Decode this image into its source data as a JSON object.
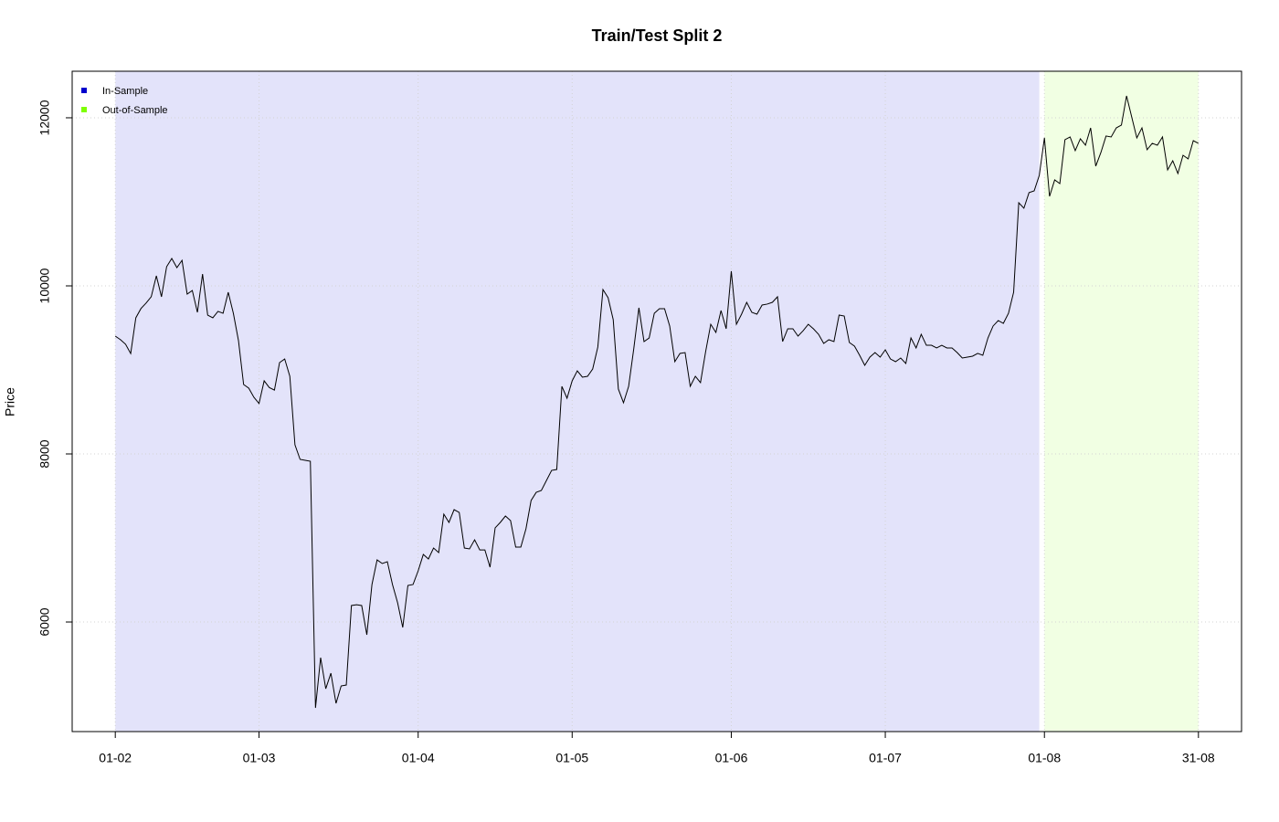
{
  "chart_data": {
    "type": "line",
    "title": "Train/Test Split 2",
    "ylabel": "Price",
    "x": [
      "01-02",
      "02-02",
      "03-02",
      "04-02",
      "05-02",
      "06-02",
      "07-02",
      "08-02",
      "09-02",
      "10-02",
      "11-02",
      "12-02",
      "13-02",
      "14-02",
      "15-02",
      "16-02",
      "17-02",
      "18-02",
      "19-02",
      "20-02",
      "21-02",
      "22-02",
      "23-02",
      "24-02",
      "25-02",
      "26-02",
      "27-02",
      "28-02",
      "01-03",
      "02-03",
      "03-03",
      "04-03",
      "05-03",
      "06-03",
      "07-03",
      "08-03",
      "09-03",
      "10-03",
      "11-03",
      "12-03",
      "13-03",
      "14-03",
      "15-03",
      "16-03",
      "17-03",
      "18-03",
      "19-03",
      "20-03",
      "21-03",
      "22-03",
      "23-03",
      "24-03",
      "25-03",
      "26-03",
      "27-03",
      "28-03",
      "29-03",
      "30-03",
      "31-03",
      "01-04",
      "02-04",
      "03-04",
      "04-04",
      "05-04",
      "06-04",
      "07-04",
      "08-04",
      "09-04",
      "10-04",
      "11-04",
      "12-04",
      "13-04",
      "14-04",
      "15-04",
      "16-04",
      "17-04",
      "18-04",
      "19-04",
      "20-04",
      "21-04",
      "22-04",
      "23-04",
      "24-04",
      "25-04",
      "26-04",
      "27-04",
      "28-04",
      "29-04",
      "30-04",
      "01-05",
      "02-05",
      "03-05",
      "04-05",
      "05-05",
      "06-05",
      "07-05",
      "08-05",
      "09-05",
      "10-05",
      "11-05",
      "12-05",
      "13-05",
      "14-05",
      "15-05",
      "16-05",
      "17-05",
      "18-05",
      "19-05",
      "20-05",
      "21-05",
      "22-05",
      "23-05",
      "24-05",
      "25-05",
      "26-05",
      "27-05",
      "28-05",
      "29-05",
      "30-05",
      "31-05",
      "01-06",
      "02-06",
      "03-06",
      "04-06",
      "05-06",
      "06-06",
      "07-06",
      "08-06",
      "09-06",
      "10-06",
      "11-06",
      "12-06",
      "13-06",
      "14-06",
      "15-06",
      "16-06",
      "17-06",
      "18-06",
      "19-06",
      "20-06",
      "21-06",
      "22-06",
      "23-06",
      "24-06",
      "25-06",
      "26-06",
      "27-06",
      "28-06",
      "29-06",
      "30-06",
      "01-07",
      "02-07",
      "03-07",
      "04-07",
      "05-07",
      "06-07",
      "07-07",
      "08-07",
      "09-07",
      "10-07",
      "11-07",
      "12-07",
      "13-07",
      "14-07",
      "15-07",
      "16-07",
      "17-07",
      "18-07",
      "19-07",
      "20-07",
      "21-07",
      "22-07",
      "23-07",
      "24-07",
      "25-07",
      "26-07",
      "27-07",
      "28-07",
      "29-07",
      "30-07",
      "31-07",
      "01-08",
      "02-08",
      "03-08",
      "04-08",
      "05-08",
      "06-08",
      "07-08",
      "08-08",
      "09-08",
      "10-08",
      "11-08",
      "12-08",
      "13-08",
      "14-08",
      "15-08",
      "16-08",
      "17-08",
      "18-08",
      "19-08",
      "20-08",
      "21-08",
      "22-08",
      "23-08",
      "24-08",
      "25-08",
      "26-08",
      "27-08",
      "28-08",
      "29-08",
      "30-08",
      "31-08"
    ],
    "values": [
      9402,
      9360,
      9305,
      9195,
      9620,
      9730,
      9795,
      9870,
      10120,
      9870,
      10228,
      10326,
      10217,
      10304,
      9902,
      9945,
      9685,
      10141,
      9652,
      9620,
      9696,
      9674,
      9924,
      9674,
      9348,
      8826,
      8783,
      8674,
      8600,
      8870,
      8790,
      8760,
      9087,
      9130,
      8924,
      8109,
      7935,
      7924,
      7913,
      4978,
      5576,
      5206,
      5391,
      5032,
      5239,
      5250,
      6196,
      6206,
      6196,
      5848,
      6446,
      6739,
      6696,
      6717,
      6446,
      6228,
      5935,
      6435,
      6446,
      6609,
      6804,
      6750,
      6880,
      6826,
      7283,
      7185,
      7337,
      7304,
      6880,
      6870,
      6978,
      6858,
      6858,
      6652,
      7120,
      7185,
      7261,
      7207,
      6891,
      6891,
      7109,
      7446,
      7543,
      7565,
      7685,
      7804,
      7815,
      8804,
      8663,
      8870,
      8989,
      8913,
      8924,
      9011,
      9272,
      9956,
      9859,
      9598,
      8772,
      8609,
      8804,
      9250,
      9739,
      9337,
      9380,
      9674,
      9728,
      9728,
      9522,
      9098,
      9196,
      9206,
      8804,
      8924,
      8848,
      9217,
      9543,
      9446,
      9706,
      9489,
      10174,
      9543,
      9663,
      9804,
      9685,
      9663,
      9772,
      9783,
      9804,
      9870,
      9337,
      9489,
      9489,
      9402,
      9467,
      9543,
      9489,
      9424,
      9315,
      9359,
      9337,
      9652,
      9641,
      9326,
      9283,
      9174,
      9054,
      9152,
      9206,
      9152,
      9239,
      9130,
      9098,
      9141,
      9076,
      9380,
      9261,
      9424,
      9293,
      9293,
      9261,
      9293,
      9261,
      9261,
      9206,
      9141,
      9152,
      9163,
      9196,
      9174,
      9380,
      9522,
      9587,
      9554,
      9674,
      9924,
      10989,
      10924,
      11109,
      11130,
      11315,
      11761,
      11065,
      11261,
      11217,
      11739,
      11772,
      11609,
      11750,
      11674,
      11880,
      11424,
      11587,
      11783,
      11772,
      11880,
      11913,
      12261,
      12011,
      11761,
      11880,
      11620,
      11696,
      11674,
      11772,
      11380,
      11489,
      11337,
      11554,
      11511,
      11728,
      11696
    ],
    "color": "#000000",
    "xticks": [
      "01-02",
      "01-03",
      "01-04",
      "01-05",
      "01-06",
      "01-07",
      "01-08",
      "31-08"
    ],
    "ylim": [
      4696,
      12554
    ],
    "yticks": [
      6000,
      8000,
      10000,
      12000
    ],
    "grid": true,
    "regions": [
      {
        "name": "In-Sample",
        "color": "#0000cd",
        "start": "01-02",
        "end": "31-07"
      },
      {
        "name": "Out-of-Sample",
        "color": "#7fff00",
        "start": "01-08",
        "end": "31-08"
      }
    ],
    "legend": "topleft"
  }
}
